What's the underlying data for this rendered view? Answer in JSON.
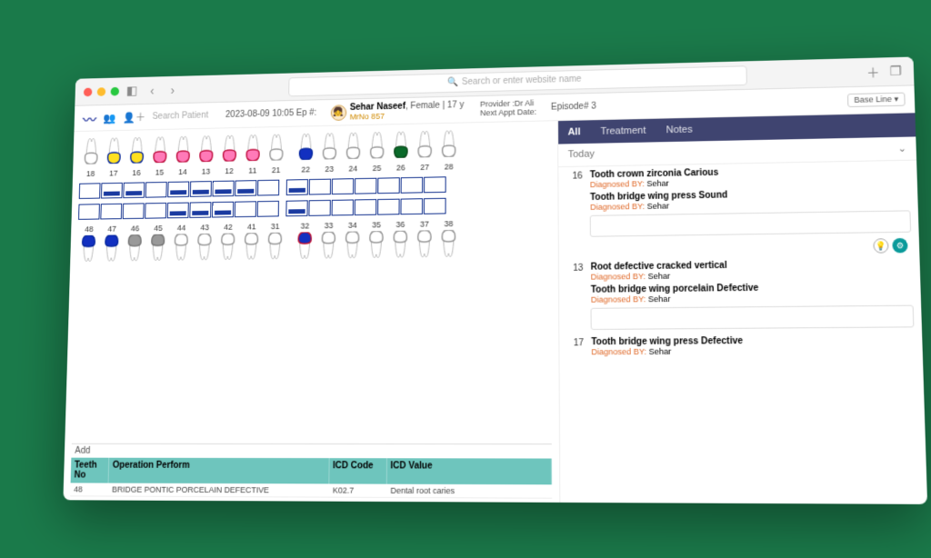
{
  "browser": {
    "search_placeholder": "Search or enter website name"
  },
  "header": {
    "search_patient_placeholder": "Search Patient",
    "datetime_ep": "2023-08-09 10:05 Ep #:",
    "patient_name": "Sehar Naseef",
    "patient_meta": ", Female | 17 y",
    "mrno": "MrNo 857",
    "provider_label": "Provider :",
    "provider_name": "Dr Ali",
    "next_appt_label": "Next Appt Date:",
    "episode": "Episode# 3",
    "view_dropdown": "Base Line"
  },
  "tabs": {
    "all": "All",
    "treatment": "Treatment",
    "notes": "Notes"
  },
  "today": "Today",
  "entries": [
    {
      "n": "16",
      "title": "Tooth crown zirconia Carious",
      "diag_by_label": "Diagnosed BY:",
      "diag_by": "Sehar"
    },
    {
      "n": "",
      "title": "Tooth bridge wing press Sound",
      "diag_by_label": "Diagnosed BY:",
      "diag_by": "Sehar"
    },
    {
      "n": "13",
      "title": "Root defective cracked vertical",
      "diag_by_label": "Diagnosed BY:",
      "diag_by": "Sehar"
    },
    {
      "n": "",
      "title": "Tooth bridge wing porcelain Defective",
      "diag_by_label": "Diagnosed BY:",
      "diag_by": "Sehar"
    },
    {
      "n": "17",
      "title": "Tooth bridge wing press Defective",
      "diag_by_label": "Diagnosed BY:",
      "diag_by": "Sehar"
    }
  ],
  "teeth": {
    "upper_nums": [
      "18",
      "17",
      "16",
      "15",
      "14",
      "13",
      "12",
      "11",
      "21",
      "22",
      "23",
      "24",
      "25",
      "26",
      "27",
      "28"
    ],
    "lower_nums": [
      "48",
      "47",
      "46",
      "45",
      "44",
      "43",
      "42",
      "41",
      "31",
      "32",
      "33",
      "34",
      "35",
      "36",
      "37",
      "38"
    ],
    "upper_colors": [
      "#fff",
      "#ffe020",
      "#ffe020",
      "#ff7ab8",
      "#ff7ab8",
      "#ff7ab8",
      "#ff7ab8",
      "#ff7ab8",
      "#fff",
      "#1230c0",
      "#fff",
      "#fff",
      "#fff",
      "#0a6a2a",
      "#fff",
      "#fff"
    ],
    "upper_outline": [
      "#999",
      "#0a2aa0",
      "#0a2aa0",
      "#c01040",
      "#c01040",
      "#c01040",
      "#c01040",
      "#c01040",
      "#999",
      "#0a2aa0",
      "#999",
      "#999",
      "#999",
      "#0a4a1a",
      "#999",
      "#999"
    ],
    "lower_colors": [
      "#1230c0",
      "#1230c0",
      "#999",
      "#999",
      "#fff",
      "#fff",
      "#fff",
      "#fff",
      "#fff",
      "#1230c0",
      "#fff",
      "#fff",
      "#fff",
      "#fff",
      "#fff",
      "#fff"
    ],
    "lower_outline": [
      "#0a2aa0",
      "#0a2aa0",
      "#777",
      "#777",
      "#999",
      "#999",
      "#999",
      "#999",
      "#999",
      "#c01030",
      "#999",
      "#999",
      "#999",
      "#999",
      "#999",
      "#999"
    ],
    "sq_upper_sel": [
      false,
      true,
      true,
      false,
      true,
      true,
      true,
      true,
      false,
      true,
      false,
      false,
      false,
      false,
      false,
      false
    ],
    "sq_lower_sel": [
      false,
      false,
      false,
      false,
      true,
      true,
      true,
      false,
      false,
      true,
      false,
      false,
      false,
      false,
      false,
      false
    ]
  },
  "table": {
    "add": "Add",
    "cols": [
      "Teeth No",
      "Operation Perform",
      "ICD Code",
      "ICD Value"
    ],
    "rows": [
      [
        "48",
        "BRIDGE PONTIC PORCELAIN DEFECTIVE",
        "K02.7",
        "Dental root caries"
      ]
    ]
  }
}
